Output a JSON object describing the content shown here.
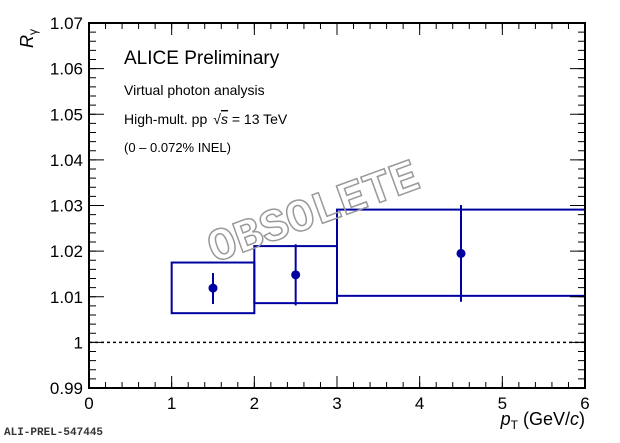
{
  "chart_data": {
    "type": "scatter",
    "title": "",
    "xlabel": "p_T (GeV/c)",
    "xlabel_parts": {
      "p": "p",
      "sub": "T",
      "rest": " (GeV/",
      "c": "c",
      "close": ")"
    },
    "ylabel": "R_γ",
    "ylabel_parts": {
      "R": "R",
      "sub": "γ"
    },
    "xlim": [
      0,
      6
    ],
    "ylim": [
      0.99,
      1.07
    ],
    "xticks": [
      "0",
      "1",
      "2",
      "3",
      "4",
      "5",
      "6"
    ],
    "yticks": [
      "0.99",
      "1",
      "1.01",
      "1.02",
      "1.03",
      "1.04",
      "1.05",
      "1.06",
      "1.07"
    ],
    "reference_line": {
      "y": 1.0,
      "style": "dashed"
    },
    "series": [
      {
        "name": "High-mult. pp 13 TeV",
        "color": "#0000a0",
        "points": [
          {
            "x": 1.5,
            "y": 1.0119,
            "stat_low": 1.0084,
            "stat_high": 1.0152,
            "sys_xlow": 1,
            "sys_xhigh": 2,
            "sys_low": 1.0064,
            "sys_high": 1.0175
          },
          {
            "x": 2.5,
            "y": 1.0148,
            "stat_low": 1.0081,
            "stat_high": 1.0215,
            "sys_xlow": 2,
            "sys_xhigh": 3,
            "sys_low": 1.0086,
            "sys_high": 1.0211
          },
          {
            "x": 4.5,
            "y": 1.0195,
            "stat_low": 1.0089,
            "stat_high": 1.0301,
            "sys_xlow": 3,
            "sys_xhigh": 6,
            "sys_low": 1.0102,
            "sys_high": 1.0291
          }
        ]
      }
    ],
    "annotations": {
      "title": "ALICE Preliminary",
      "line1": "Virtual photon analysis",
      "line2_pre": "High-mult. pp",
      "line2_sqrt": "√",
      "line2_s": "s",
      "line2_post": " = 13 TeV",
      "line3": "(0 – 0.072% INEL)"
    },
    "watermark": "OBSOLETE",
    "figure_id": "ALI-PREL-547445"
  }
}
